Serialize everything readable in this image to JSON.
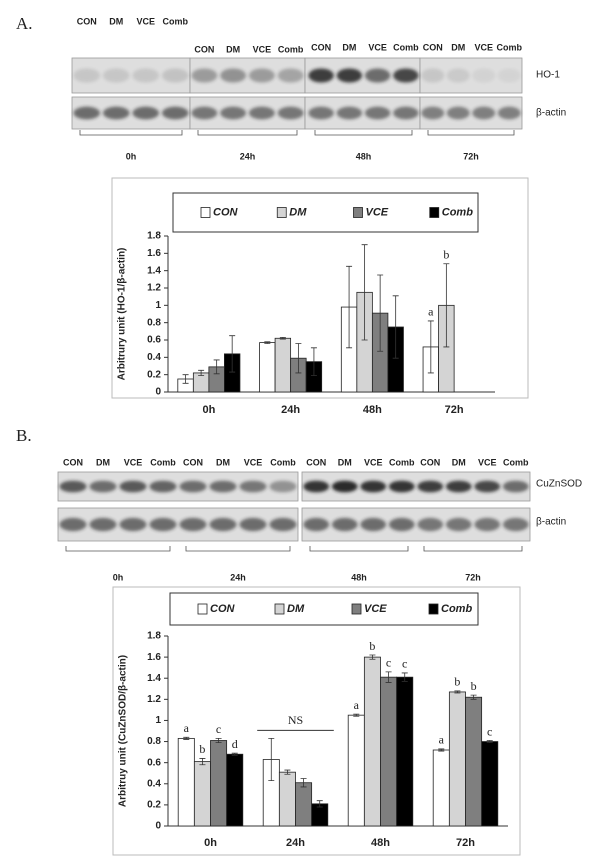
{
  "panels": [
    {
      "label": "A.",
      "lanes": [
        "CON",
        "DM",
        "VCE",
        "Comb"
      ],
      "proteins": [
        "HO-1",
        "β-actin"
      ],
      "times": [
        "0h",
        "24h",
        "48h",
        "72h"
      ]
    },
    {
      "label": "B.",
      "lanes": [
        "CON",
        "DM",
        "VCE",
        "Comb"
      ],
      "proteins": [
        "CuZnSOD",
        "β-actin"
      ],
      "times": [
        "0h",
        "24h",
        "48h",
        "72h"
      ]
    }
  ],
  "chart_data": [
    {
      "type": "bar",
      "y_label": "Arbitrury unit (HO-1/β-actin)",
      "categories": [
        "0h",
        "24h",
        "48h",
        "72h"
      ],
      "ylim": [
        0,
        1.8
      ],
      "yticks": [
        0,
        0.2,
        0.4,
        0.6,
        0.8,
        1,
        1.2,
        1.4,
        1.6,
        1.8
      ],
      "series": [
        {
          "name": "CON",
          "color": "#ffffff",
          "values": [
            0.15,
            0.57,
            0.98,
            0.52
          ],
          "errors": [
            0.05,
            0.01,
            0.47,
            0.3
          ],
          "annotations": [
            null,
            null,
            null,
            "a"
          ]
        },
        {
          "name": "DM",
          "color": "#d4d4d4",
          "values": [
            0.22,
            0.62,
            1.15,
            1.0
          ],
          "errors": [
            0.03,
            0.01,
            0.55,
            0.48
          ],
          "annotations": [
            null,
            null,
            null,
            "b"
          ]
        },
        {
          "name": "VCE",
          "color": "#7f7f7f",
          "values": [
            0.29,
            0.39,
            0.91,
            null
          ],
          "errors": [
            0.08,
            0.17,
            0.44,
            null
          ],
          "annotations": [
            null,
            null,
            null,
            null
          ]
        },
        {
          "name": "Comb",
          "color": "#000000",
          "values": [
            0.44,
            0.35,
            0.75,
            null
          ],
          "errors": [
            0.21,
            0.16,
            0.36,
            null
          ],
          "annotations": [
            null,
            null,
            null,
            null
          ]
        }
      ]
    },
    {
      "type": "bar",
      "y_label": "Arbitruy unit (CuZnSOD/β-actin)",
      "categories": [
        "0h",
        "24h",
        "48h",
        "72h"
      ],
      "ylim": [
        0,
        1.8
      ],
      "yticks": [
        0,
        0.2,
        0.4,
        0.6,
        0.8,
        1,
        1.2,
        1.4,
        1.6,
        1.8
      ],
      "group_labels": [
        null,
        "NS",
        null,
        null
      ],
      "series": [
        {
          "name": "CON",
          "color": "#ffffff",
          "values": [
            0.83,
            0.63,
            1.05,
            0.72
          ],
          "errors": [
            0.01,
            0.2,
            0.01,
            0.01
          ],
          "annotations": [
            "a",
            null,
            "a",
            "a"
          ]
        },
        {
          "name": "DM",
          "color": "#d4d4d4",
          "values": [
            0.61,
            0.51,
            1.6,
            1.27
          ],
          "errors": [
            0.03,
            0.02,
            0.02,
            0.01
          ],
          "annotations": [
            "b",
            null,
            "b",
            "b"
          ]
        },
        {
          "name": "VCE",
          "color": "#7f7f7f",
          "values": [
            0.81,
            0.41,
            1.41,
            1.22
          ],
          "errors": [
            0.02,
            0.04,
            0.05,
            0.02
          ],
          "annotations": [
            "c",
            null,
            "c",
            "b"
          ]
        },
        {
          "name": "Comb",
          "color": "#000000",
          "values": [
            0.68,
            0.21,
            1.41,
            0.8
          ],
          "errors": [
            0.01,
            0.03,
            0.04,
            0.01
          ],
          "annotations": [
            "d",
            null,
            "c",
            "c"
          ]
        }
      ]
    }
  ]
}
